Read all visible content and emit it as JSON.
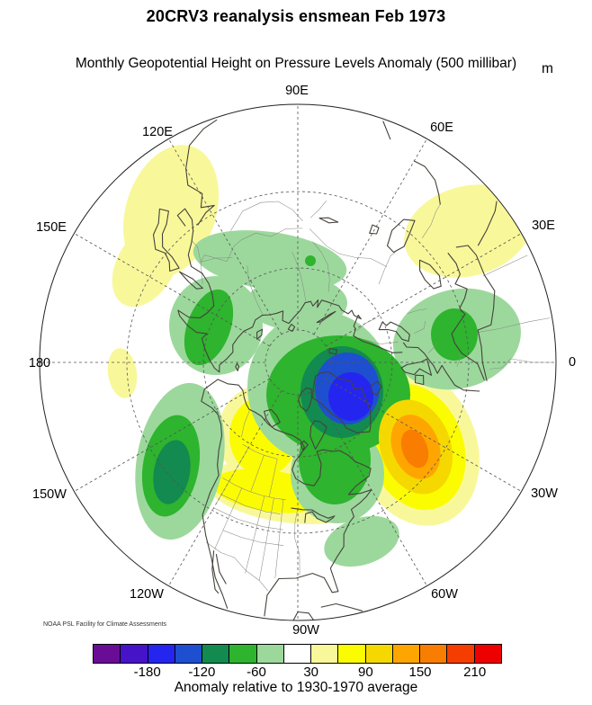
{
  "header": {
    "title": "20CRV3 reanalysis ensmean Feb 1973",
    "subtitle": "Monthly Geopotential Height on Pressure Levels Anomaly (500 millibar)",
    "units_label": "m"
  },
  "credit": "NOAA PSL Facility for Climate Assessments",
  "caption": "Anomaly relative to 1930-1970 average",
  "chart_data": {
    "type": "filled-contour-map",
    "projection": "Northern Hemisphere polar stereographic, pole centered, 0 longitude at right, boundary near 20N",
    "dataset": "20CRV3 reanalysis ensmean",
    "date": "Feb 1973",
    "variable": "Monthly Geopotential Height on Pressure Levels Anomaly",
    "pressure_level": "500 millibar",
    "units": "m",
    "baseline": "1930-1970 average",
    "contour_interval_m": 30,
    "longitude_labels": {
      "e90": "90E",
      "e120": "120E",
      "e150": "150E",
      "w180": "180",
      "w150": "150W",
      "w120": "120W",
      "w90": "90W",
      "w60": "60W",
      "w30": "30W",
      "p0": "0",
      "e30": "30E",
      "e60": "60E"
    },
    "colorbar": {
      "tick_labels": [
        "-180",
        "-120",
        "-60",
        "30",
        "90",
        "150",
        "210"
      ],
      "levels_m": [
        -210,
        -180,
        -150,
        -120,
        -90,
        -60,
        -30,
        30,
        60,
        90,
        120,
        150,
        180,
        210
      ],
      "colors": [
        "#6A0D96",
        "#4713C8",
        "#2525F0",
        "#1E4FD0",
        "#128A50",
        "#2EB42E",
        "#9CD89C",
        "#FFFFFF",
        "#F8F89B",
        "#FCFC00",
        "#F5D800",
        "#FFA500",
        "#F97D00",
        "#F63D00",
        "#EF0000"
      ]
    },
    "anomaly_centers": [
      {
        "region": "Baffin Island / Greenland (near pole)",
        "sign": "negative",
        "value_range_m": "-180 to -150"
      },
      {
        "region": "Northeast Pacific off North American west coast",
        "sign": "negative",
        "value_range_m": "-120 to -90"
      },
      {
        "region": "North Atlantic south of Greenland",
        "sign": "positive",
        "value_range_m": "+150 to +180"
      },
      {
        "region": "Western Canada / northern Great Plains",
        "sign": "positive",
        "value_range_m": "+60 to +90"
      },
      {
        "region": "Eastern Siberia / Sea of Okhotsk",
        "sign": "positive",
        "value_range_m": "+30 to +60"
      },
      {
        "region": "Central Asia / western Russia",
        "sign": "positive",
        "value_range_m": "+30 to +60"
      },
      {
        "region": "Southeastern United States coast",
        "sign": "negative",
        "value_range_m": "-60 to -30"
      },
      {
        "region": "Northern Siberia band",
        "sign": "negative",
        "value_range_m": "-60 to -30"
      },
      {
        "region": "Southern Europe / Balkans",
        "sign": "negative",
        "value_range_m": "-90 to -60"
      }
    ]
  }
}
